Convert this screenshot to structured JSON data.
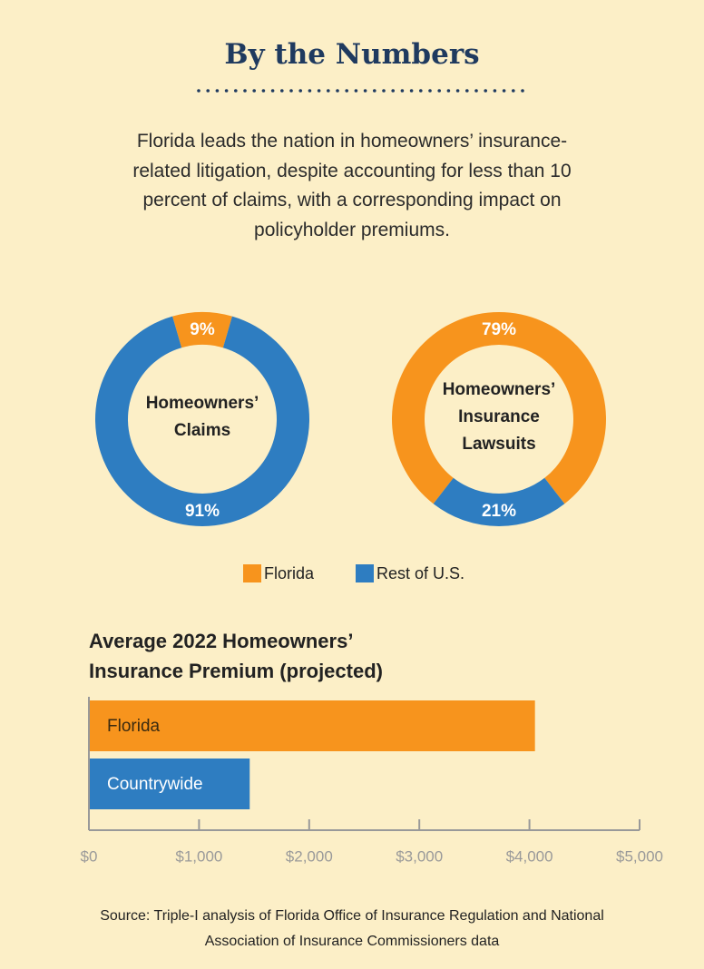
{
  "title": "By the Numbers",
  "description": "Florida leads the nation in homeowners’ insurance-related litigation, despite accounting for less than 10 percent of claims, with a corresponding impact on policyholder premiums.",
  "source": "Source: Triple-I analysis of Florida Office of Insurance Regulation and National Association of Insurance Commissioners data",
  "chart_data": [
    {
      "type": "pie",
      "title": "Homeowners’ Claims",
      "categories": [
        "Florida",
        "Rest of U.S."
      ],
      "values": [
        9,
        91
      ],
      "value_labels": [
        "9%",
        "91%"
      ],
      "colors": [
        "#f7941d",
        "#2e7dc1"
      ]
    },
    {
      "type": "pie",
      "title": "Homeowners’ Insurance Lawsuits",
      "categories": [
        "Florida",
        "Rest of U.S."
      ],
      "values": [
        79,
        21
      ],
      "value_labels": [
        "79%",
        "21%"
      ],
      "colors": [
        "#f7941d",
        "#2e7dc1"
      ]
    },
    {
      "type": "bar",
      "orientation": "horizontal",
      "title": "Average 2022 Homeowners’ Insurance Premium (projected)",
      "categories": [
        "Florida",
        "Countrywide"
      ],
      "values": [
        4050,
        1460
      ],
      "colors": [
        "#f7941d",
        "#2e7dc1"
      ],
      "xlim": [
        0,
        5000
      ],
      "xticks": [
        {
          "value": 0,
          "label": "$0"
        },
        {
          "value": 1000,
          "label": "$1,000"
        },
        {
          "value": 2000,
          "label": "$2,000"
        },
        {
          "value": 3000,
          "label": "$3,000"
        },
        {
          "value": 4000,
          "label": "$4,000"
        },
        {
          "value": 5000,
          "label": "$5,000"
        }
      ]
    }
  ]
}
